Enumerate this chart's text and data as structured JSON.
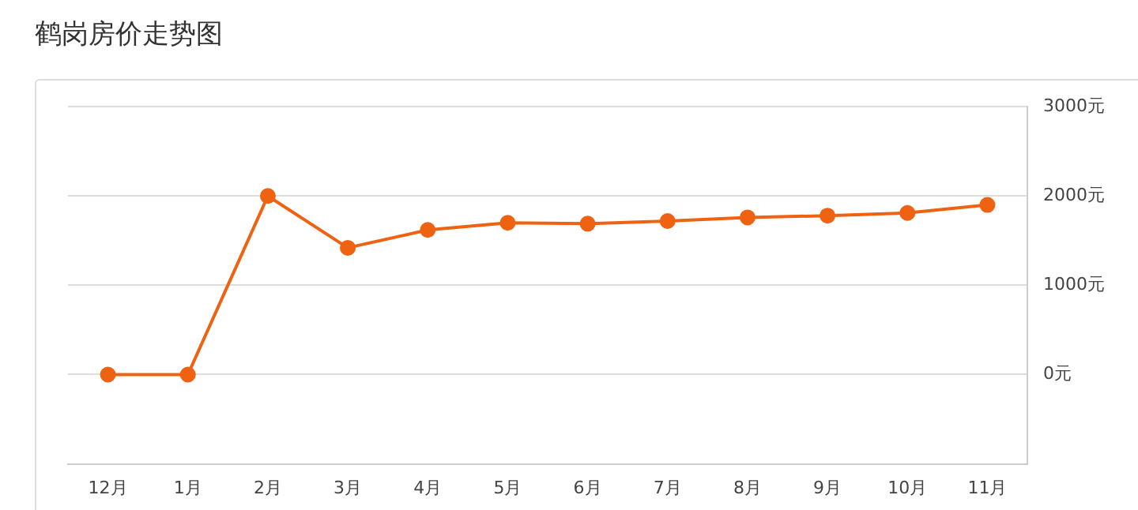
{
  "chart_data": {
    "type": "line",
    "title": "鹤岗房价走势图",
    "categories": [
      "12月",
      "1月",
      "2月",
      "3月",
      "4月",
      "5月",
      "6月",
      "7月",
      "8月",
      "9月",
      "10月",
      "11月"
    ],
    "series": [
      {
        "color": "#ee6211",
        "values": [
          0,
          0,
          2000,
          1420,
          1620,
          1700,
          1690,
          1720,
          1760,
          1780,
          1810,
          1900
        ]
      }
    ],
    "ylim": [
      -1000,
      3000
    ],
    "yticks": [
      {
        "value": 0,
        "label": "0元"
      },
      {
        "value": 1000,
        "label": "1000元"
      },
      {
        "value": 2000,
        "label": "2000元"
      },
      {
        "value": 3000,
        "label": "3000元"
      }
    ],
    "grid": "y",
    "legend": false,
    "marker": "circle",
    "line_style": "solid"
  }
}
